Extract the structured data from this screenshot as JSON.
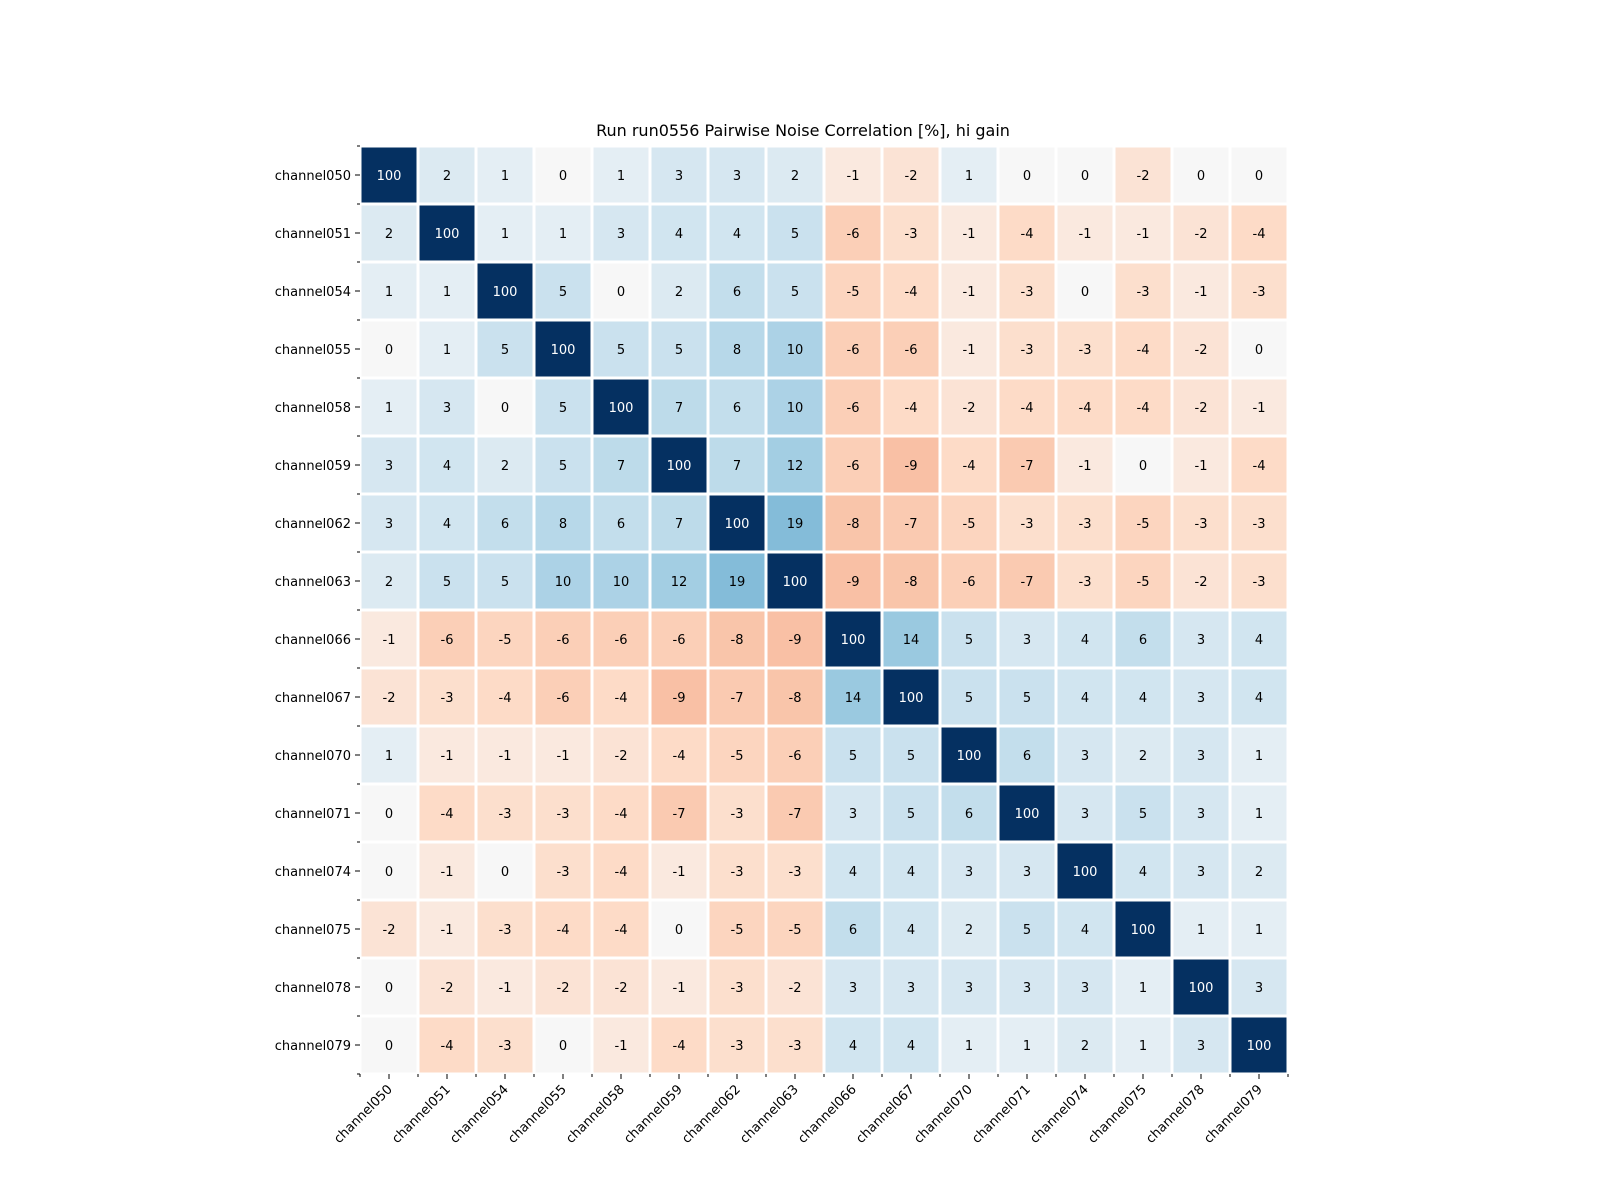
{
  "chart_data": {
    "type": "heatmap",
    "title": "Run run0556 Pairwise Noise Correlation [%], hi gain",
    "xlabel": "",
    "ylabel": "",
    "colormap": "RdBu",
    "value_range": [
      -100,
      100
    ],
    "colors": {
      "strong_positive": "#053061",
      "neutral": "#f7f7f7",
      "strong_negative": "#67001f",
      "grid_line": "#ffffff"
    },
    "grid": false,
    "legend": "none",
    "categories": [
      "channel050",
      "channel051",
      "channel054",
      "channel055",
      "channel058",
      "channel059",
      "channel062",
      "channel063",
      "channel066",
      "channel067",
      "channel070",
      "channel071",
      "channel074",
      "channel075",
      "channel078",
      "channel079"
    ],
    "values": [
      [
        100,
        2,
        1,
        0,
        1,
        3,
        3,
        2,
        -1,
        -2,
        1,
        0,
        0,
        -2,
        0,
        0
      ],
      [
        2,
        100,
        1,
        1,
        3,
        4,
        4,
        5,
        -6,
        -3,
        -1,
        -4,
        -1,
        -1,
        -2,
        -4
      ],
      [
        1,
        1,
        100,
        5,
        0,
        2,
        6,
        5,
        -5,
        -4,
        -1,
        -3,
        0,
        -3,
        -1,
        -3
      ],
      [
        0,
        1,
        5,
        100,
        5,
        5,
        8,
        10,
        -6,
        -6,
        -1,
        -3,
        -3,
        -4,
        -2,
        0
      ],
      [
        1,
        3,
        0,
        5,
        100,
        7,
        6,
        10,
        -6,
        -4,
        -2,
        -4,
        -4,
        -4,
        -2,
        -1
      ],
      [
        3,
        4,
        2,
        5,
        7,
        100,
        7,
        12,
        -6,
        -9,
        -4,
        -7,
        -1,
        0,
        -1,
        -4
      ],
      [
        3,
        4,
        6,
        8,
        6,
        7,
        100,
        19,
        -8,
        -7,
        -5,
        -3,
        -3,
        -5,
        -3,
        -3
      ],
      [
        2,
        5,
        5,
        10,
        10,
        12,
        19,
        100,
        -9,
        -8,
        -6,
        -7,
        -3,
        -5,
        -2,
        -3
      ],
      [
        -1,
        -6,
        -5,
        -6,
        -6,
        -6,
        -8,
        -9,
        100,
        14,
        5,
        3,
        4,
        6,
        3,
        4
      ],
      [
        -2,
        -3,
        -4,
        -6,
        -4,
        -9,
        -7,
        -8,
        14,
        100,
        5,
        5,
        4,
        4,
        3,
        4
      ],
      [
        1,
        -1,
        -1,
        -1,
        -2,
        -4,
        -5,
        -6,
        5,
        5,
        100,
        6,
        3,
        2,
        3,
        1
      ],
      [
        0,
        -4,
        -3,
        -3,
        -4,
        -7,
        -3,
        -7,
        3,
        5,
        6,
        100,
        3,
        5,
        3,
        1
      ],
      [
        0,
        -1,
        0,
        -3,
        -4,
        -1,
        -3,
        -3,
        4,
        4,
        3,
        3,
        100,
        4,
        3,
        2
      ],
      [
        -2,
        -1,
        -3,
        -4,
        -4,
        0,
        -5,
        -5,
        6,
        4,
        2,
        5,
        4,
        100,
        1,
        1
      ],
      [
        0,
        -2,
        -1,
        -2,
        -2,
        -1,
        -3,
        -2,
        3,
        3,
        3,
        3,
        3,
        1,
        100,
        3
      ],
      [
        0,
        -4,
        -3,
        0,
        -1,
        -4,
        -3,
        -3,
        4,
        4,
        1,
        1,
        2,
        1,
        3,
        100
      ]
    ]
  }
}
